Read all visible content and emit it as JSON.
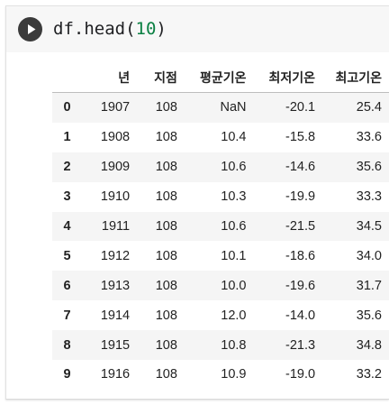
{
  "code_cell": {
    "code_prefix": "df.head(",
    "code_arg": "10",
    "code_suffix": ")"
  },
  "table": {
    "columns": [
      "년",
      "지점",
      "평균기온",
      "최저기온",
      "최고기온"
    ],
    "rows": [
      {
        "index": "0",
        "year": "1907",
        "station": "108",
        "avg": "NaN",
        "min": "-20.1",
        "max": "25.4"
      },
      {
        "index": "1",
        "year": "1908",
        "station": "108",
        "avg": "10.4",
        "min": "-15.8",
        "max": "33.6"
      },
      {
        "index": "2",
        "year": "1909",
        "station": "108",
        "avg": "10.6",
        "min": "-14.6",
        "max": "35.6"
      },
      {
        "index": "3",
        "year": "1910",
        "station": "108",
        "avg": "10.3",
        "min": "-19.9",
        "max": "33.3"
      },
      {
        "index": "4",
        "year": "1911",
        "station": "108",
        "avg": "10.6",
        "min": "-21.5",
        "max": "34.5"
      },
      {
        "index": "5",
        "year": "1912",
        "station": "108",
        "avg": "10.1",
        "min": "-18.6",
        "max": "34.0"
      },
      {
        "index": "6",
        "year": "1913",
        "station": "108",
        "avg": "10.0",
        "min": "-19.6",
        "max": "31.7"
      },
      {
        "index": "7",
        "year": "1914",
        "station": "108",
        "avg": "12.0",
        "min": "-14.0",
        "max": "35.6"
      },
      {
        "index": "8",
        "year": "1915",
        "station": "108",
        "avg": "10.8",
        "min": "-21.3",
        "max": "34.8"
      },
      {
        "index": "9",
        "year": "1916",
        "station": "108",
        "avg": "10.9",
        "min": "-19.0",
        "max": "33.2"
      }
    ]
  }
}
